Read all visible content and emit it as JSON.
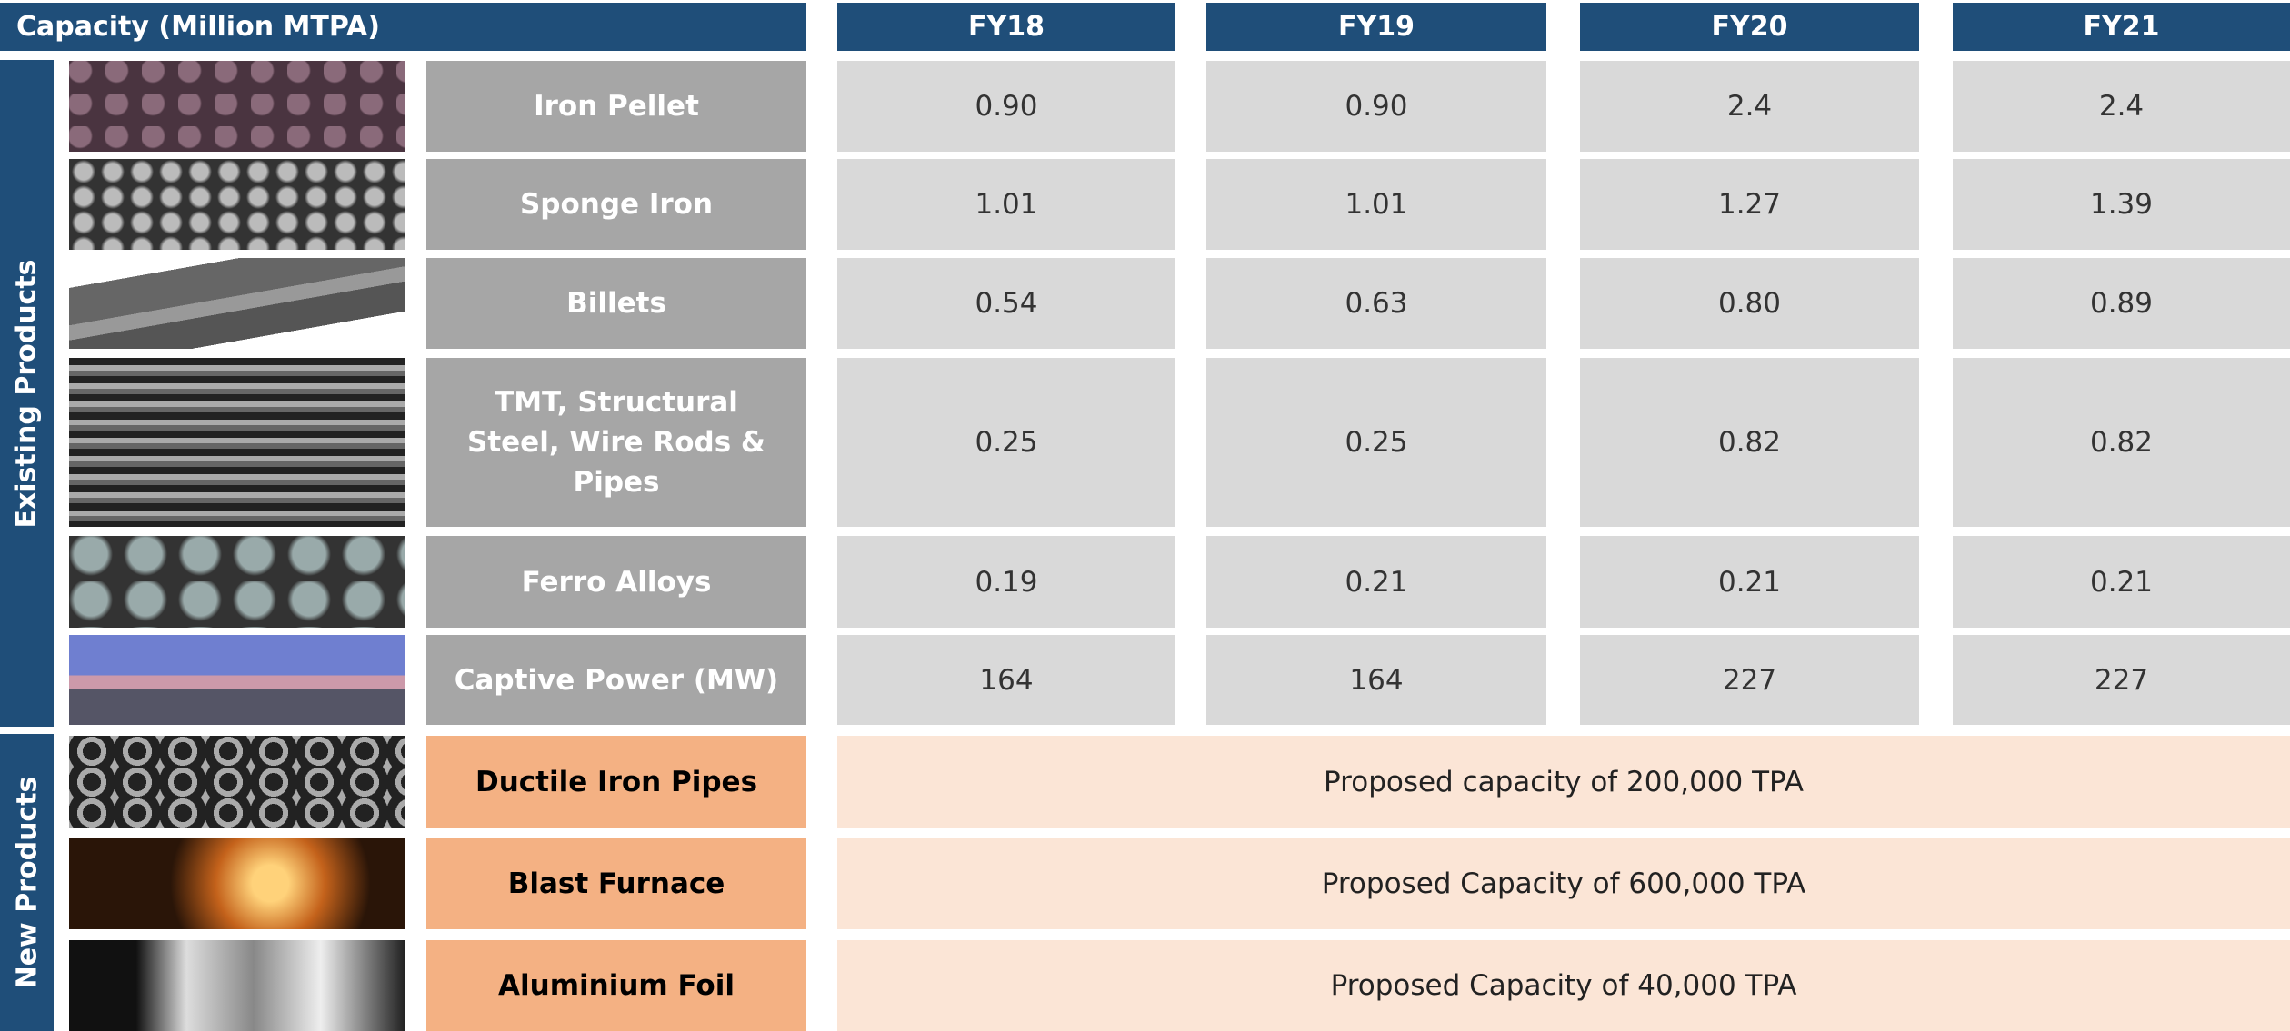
{
  "header": {
    "title": "Capacity (Million MTPA)",
    "columns": [
      "FY18",
      "FY19",
      "FY20",
      "FY21"
    ]
  },
  "sections": [
    {
      "label": "Existing Products",
      "rows": [
        {
          "name": "Iron Pellet",
          "values": [
            "0.90",
            "0.90",
            "2.4",
            "2.4"
          ]
        },
        {
          "name": "Sponge Iron",
          "values": [
            "1.01",
            "1.01",
            "1.27",
            "1.39"
          ]
        },
        {
          "name": "Billets",
          "values": [
            "0.54",
            "0.63",
            "0.80",
            "0.89"
          ]
        },
        {
          "name": "TMT, Structural Steel, Wire Rods & Pipes",
          "values": [
            "0.25",
            "0.25",
            "0.82",
            "0.82"
          ]
        },
        {
          "name": "Ferro Alloys",
          "values": [
            "0.19",
            "0.21",
            "0.21",
            "0.21"
          ]
        },
        {
          "name": "Captive Power (MW)",
          "values": [
            "164",
            "164",
            "227",
            "227"
          ]
        }
      ]
    },
    {
      "label": "New Products",
      "rows": [
        {
          "name": "Ductile Iron Pipes",
          "note": "Proposed capacity of 200,000 TPA"
        },
        {
          "name": "Blast Furnace",
          "note": "Proposed Capacity of 600,000 TPA"
        },
        {
          "name": "Aluminium Foil",
          "note": "Proposed Capacity of 40,000 TPA"
        }
      ]
    }
  ]
}
